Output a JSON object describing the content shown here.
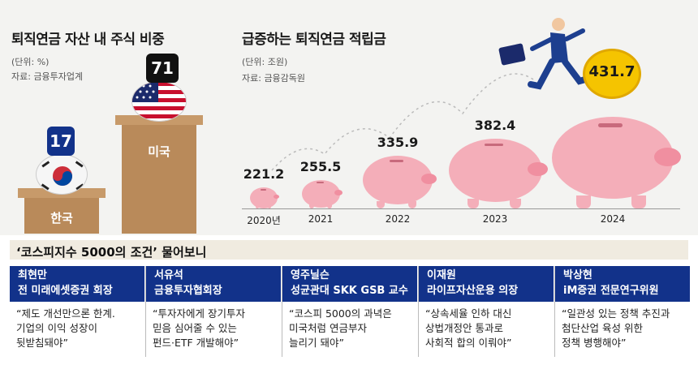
{
  "left_chart": {
    "title": "퇴직연금 자산 내 주식 비중",
    "unit": "(단위: %)",
    "source": "자료: 금융투자업계",
    "items": [
      {
        "label": "한국",
        "value": "17"
      },
      {
        "label": "미국",
        "value": "71"
      }
    ]
  },
  "right_chart": {
    "title": "급증하는 퇴직연금 적립금",
    "unit": "(단위: 조원)",
    "source": "자료: 금융감독원",
    "items": [
      {
        "year": "2020년",
        "value": "221.2"
      },
      {
        "year": "2021",
        "value": "255.5"
      },
      {
        "year": "2022",
        "value": "335.9"
      },
      {
        "year": "2023",
        "value": "382.4"
      },
      {
        "year": "2024",
        "value": "431.7"
      }
    ]
  },
  "chart_data": [
    {
      "type": "bar",
      "title": "퇴직연금 자산 내 주식 비중",
      "unit": "%",
      "categories": [
        "한국",
        "미국"
      ],
      "values": [
        17,
        71
      ]
    },
    {
      "type": "bar",
      "title": "급증하는 퇴직연금 적립금",
      "unit": "조원",
      "categories": [
        "2020년",
        "2021",
        "2022",
        "2023",
        "2024"
      ],
      "values": [
        221.2,
        255.5,
        335.9,
        382.4,
        431.7
      ]
    }
  ],
  "interview": {
    "title": "‘코스피지수 5000의 조건’ 물어보니",
    "people": [
      {
        "name": "최현만",
        "role": "전 미래에셋증권 회장",
        "quote_lines": [
          "“제도 개선만으론 한계.",
          "기업의 이익 성장이",
          "뒷받침돼야”"
        ]
      },
      {
        "name": "서유석",
        "role": "금융투자협회장",
        "quote_lines": [
          "“투자자에게 장기투자",
          "믿음 심어줄 수 있는",
          "펀드·ETF 개발해야”"
        ]
      },
      {
        "name": "영주닐슨",
        "role": "성균관대 SKK GSB 교수",
        "quote_lines": [
          "“코스피 5000의 과녁은",
          "미국처럼 연금부자",
          "늘리기 돼야”"
        ]
      },
      {
        "name": "이재원",
        "role": "라이프자산운용 의장",
        "quote_lines": [
          "“상속세율 인하 대신",
          "상법개정안 통과로",
          "사회적 합의 이뤄야”"
        ]
      },
      {
        "name": "박상현",
        "role": "iM증권 전문연구위원",
        "quote_lines": [
          "“일관성 있는 정책 추진과",
          "첨단산업 육성 위한",
          "정책 병행해야”"
        ]
      }
    ]
  },
  "colors": {
    "navy": "#12328a",
    "pig": "#f4aeb9",
    "podium": "#b98a5a",
    "coin": "#f5c400"
  }
}
